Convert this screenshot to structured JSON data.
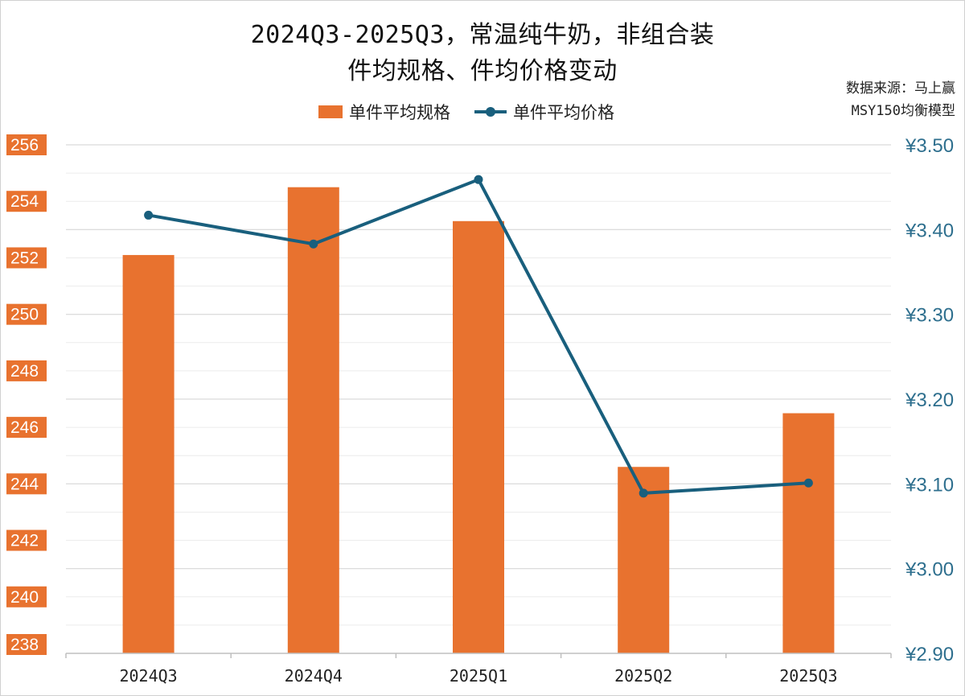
{
  "title": {
    "line1": "2024Q3-2025Q3，常温纯牛奶，非组合装",
    "line2": "件均规格、件均价格变动"
  },
  "source": {
    "line1": "数据来源：马上赢",
    "line2": "MSY150均衡模型"
  },
  "legend": {
    "bar": "单件平均规格",
    "line": "单件平均价格"
  },
  "colors": {
    "bar": "#e8722f",
    "line": "#195f7d",
    "left_axis_text": "#ffffff",
    "right_axis_text": "#2e6f8e",
    "grid": "#d9d9d9"
  },
  "chart_data": {
    "type": "bar+line",
    "categories": [
      "2024Q3",
      "2024Q4",
      "2025Q1",
      "2025Q2",
      "2025Q3"
    ],
    "series": [
      {
        "name": "单件平均规格",
        "type": "bar",
        "axis": "left",
        "values": [
          252.1,
          254.5,
          253.3,
          244.6,
          246.5
        ]
      },
      {
        "name": "单件平均价格",
        "type": "line",
        "axis": "right",
        "values": [
          3.417,
          3.383,
          3.459,
          3.089,
          3.101
        ]
      }
    ],
    "left_axis": {
      "ylim": [
        238,
        256
      ],
      "ticks": [
        "256",
        "254",
        "252",
        "250",
        "248",
        "246",
        "244",
        "242",
        "240",
        "238"
      ]
    },
    "right_axis": {
      "ylim": [
        2.9,
        3.5
      ],
      "ticks": [
        "¥3.50",
        "¥3.40",
        "¥3.30",
        "¥3.20",
        "¥3.10",
        "¥3.00",
        "¥2.90"
      ]
    },
    "grid": true,
    "legend_position": "top"
  }
}
